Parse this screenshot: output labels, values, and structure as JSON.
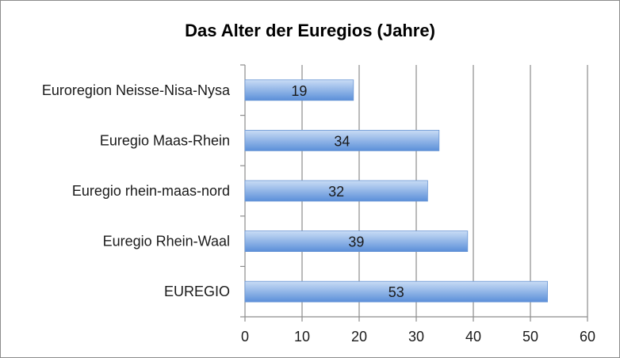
{
  "chart_data": {
    "type": "bar",
    "orientation": "horizontal",
    "title": "Das Alter der Euregios (Jahre)",
    "xlabel": "",
    "ylabel": "",
    "categories": [
      "Euroregion Neisse-Nisa-Nysa",
      "Euregio Maas-Rhein",
      "Euregio rhein-maas-nord",
      "Euregio Rhein-Waal",
      "EUREGIO"
    ],
    "values": [
      19,
      34,
      32,
      39,
      53
    ],
    "xlim": [
      0,
      60
    ],
    "xticks": [
      0,
      10,
      20,
      30,
      40,
      50,
      60
    ],
    "grid": true,
    "legend": "none",
    "data_labels": true,
    "colors": {
      "bar_top": "#c9dcf5",
      "bar_bottom": "#5b8fd9",
      "bar_stroke": "#6a96d4",
      "grid": "#8c8c8c"
    }
  }
}
